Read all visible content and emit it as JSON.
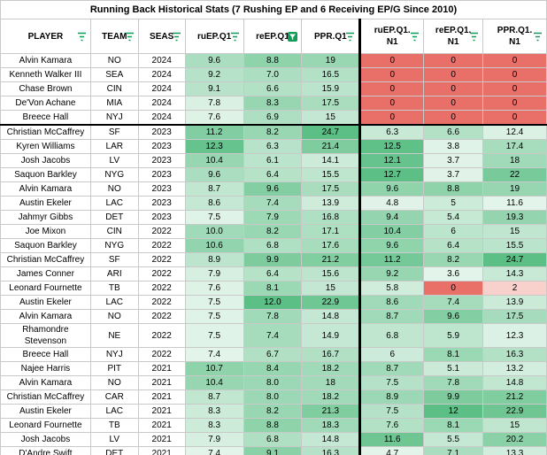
{
  "title": "Running Back Historical Stats (7 Rushing EP and 6 Receiving EP/G Since 2010)",
  "headers": [
    "PLAYER",
    "TEAM",
    "SEAS",
    "ruEP.Q1",
    "reEP.Q1",
    "PPR.Q1",
    "ruEP.Q1. N1",
    "reEP.Q1. N1",
    "PPR.Q1. N1"
  ],
  "colors": {
    "green_dark": "#5cbf85",
    "red": "#e87069",
    "green_light": "#e3f4ea",
    "filter_green": "#0f9d58"
  },
  "rows": [
    {
      "player": "Alvin Kamara",
      "team": "NO",
      "seas": "2024",
      "v": [
        "9.6",
        "8.8",
        "19",
        "0",
        "0",
        "0"
      ]
    },
    {
      "player": "Kenneth Walker III",
      "team": "SEA",
      "seas": "2024",
      "v": [
        "9.2",
        "7.0",
        "16.5",
        "0",
        "0",
        "0"
      ]
    },
    {
      "player": "Chase Brown",
      "team": "CIN",
      "seas": "2024",
      "v": [
        "9.1",
        "6.6",
        "15.9",
        "0",
        "0",
        "0"
      ]
    },
    {
      "player": "De'Von Achane",
      "team": "MIA",
      "seas": "2024",
      "v": [
        "7.8",
        "8.3",
        "17.5",
        "0",
        "0",
        "0"
      ]
    },
    {
      "player": "Breece Hall",
      "team": "NYJ",
      "seas": "2024",
      "v": [
        "7.6",
        "6.9",
        "15",
        "0",
        "0",
        "0"
      ]
    },
    {
      "player": "Christian McCaffrey",
      "team": "SF",
      "seas": "2023",
      "v": [
        "11.2",
        "8.2",
        "24.7",
        "6.3",
        "6.6",
        "12.4"
      ]
    },
    {
      "player": "Kyren Williams",
      "team": "LAR",
      "seas": "2023",
      "v": [
        "12.3",
        "6.3",
        "21.4",
        "12.5",
        "3.8",
        "17.4"
      ]
    },
    {
      "player": "Josh Jacobs",
      "team": "LV",
      "seas": "2023",
      "v": [
        "10.4",
        "6.1",
        "14.1",
        "12.1",
        "3.7",
        "18"
      ]
    },
    {
      "player": "Saquon Barkley",
      "team": "NYG",
      "seas": "2023",
      "v": [
        "9.6",
        "6.4",
        "15.5",
        "12.7",
        "3.7",
        "22"
      ]
    },
    {
      "player": "Alvin Kamara",
      "team": "NO",
      "seas": "2023",
      "v": [
        "8.7",
        "9.6",
        "17.5",
        "9.6",
        "8.8",
        "19"
      ]
    },
    {
      "player": "Austin Ekeler",
      "team": "LAC",
      "seas": "2023",
      "v": [
        "8.6",
        "7.4",
        "13.9",
        "4.8",
        "5",
        "11.6"
      ]
    },
    {
      "player": "Jahmyr Gibbs",
      "team": "DET",
      "seas": "2023",
      "v": [
        "7.5",
        "7.9",
        "16.8",
        "9.4",
        "5.4",
        "19.3"
      ]
    },
    {
      "player": "Joe Mixon",
      "team": "CIN",
      "seas": "2022",
      "v": [
        "10.0",
        "8.2",
        "17.1",
        "10.4",
        "6",
        "15"
      ]
    },
    {
      "player": "Saquon Barkley",
      "team": "NYG",
      "seas": "2022",
      "v": [
        "10.6",
        "6.8",
        "17.6",
        "9.6",
        "6.4",
        "15.5"
      ]
    },
    {
      "player": "Christian McCaffrey",
      "team": "SF",
      "seas": "2022",
      "v": [
        "8.9",
        "9.9",
        "21.2",
        "11.2",
        "8.2",
        "24.7"
      ]
    },
    {
      "player": "James Conner",
      "team": "ARI",
      "seas": "2022",
      "v": [
        "7.9",
        "6.4",
        "15.6",
        "9.2",
        "3.6",
        "14.3"
      ]
    },
    {
      "player": "Leonard Fournette",
      "team": "TB",
      "seas": "2022",
      "v": [
        "7.6",
        "8.1",
        "15",
        "5.8",
        "0",
        "2"
      ]
    },
    {
      "player": "Austin Ekeler",
      "team": "LAC",
      "seas": "2022",
      "v": [
        "7.5",
        "12.0",
        "22.9",
        "8.6",
        "7.4",
        "13.9"
      ]
    },
    {
      "player": "Alvin Kamara",
      "team": "NO",
      "seas": "2022",
      "v": [
        "7.5",
        "7.8",
        "14.8",
        "8.7",
        "9.6",
        "17.5"
      ]
    },
    {
      "player": "Rhamondre Stevenson",
      "team": "NE",
      "seas": "2022",
      "v": [
        "7.5",
        "7.4",
        "14.9",
        "6.8",
        "5.9",
        "12.3"
      ]
    },
    {
      "player": "Breece Hall",
      "team": "NYJ",
      "seas": "2022",
      "v": [
        "7.4",
        "6.7",
        "16.7",
        "6",
        "8.1",
        "16.3"
      ]
    },
    {
      "player": "Najee Harris",
      "team": "PIT",
      "seas": "2021",
      "v": [
        "10.7",
        "8.4",
        "18.2",
        "8.7",
        "5.1",
        "13.2"
      ]
    },
    {
      "player": "Alvin Kamara",
      "team": "NO",
      "seas": "2021",
      "v": [
        "10.4",
        "8.0",
        "18",
        "7.5",
        "7.8",
        "14.8"
      ]
    },
    {
      "player": "Christian McCaffrey",
      "team": "CAR",
      "seas": "2021",
      "v": [
        "8.7",
        "8.0",
        "18.2",
        "8.9",
        "9.9",
        "21.2"
      ]
    },
    {
      "player": "Austin Ekeler",
      "team": "LAC",
      "seas": "2021",
      "v": [
        "8.3",
        "8.2",
        "21.3",
        "7.5",
        "12",
        "22.9"
      ]
    },
    {
      "player": "Leonard Fournette",
      "team": "TB",
      "seas": "2021",
      "v": [
        "8.3",
        "8.8",
        "18.3",
        "7.6",
        "8.1",
        "15"
      ]
    },
    {
      "player": "Josh Jacobs",
      "team": "LV",
      "seas": "2021",
      "v": [
        "7.9",
        "6.8",
        "14.8",
        "11.6",
        "5.5",
        "20.2"
      ]
    },
    {
      "player": "D'Andre Swift",
      "team": "DET",
      "seas": "2021",
      "v": [
        "7.4",
        "9.1",
        "16.3",
        "4.7",
        "7.1",
        "13.3"
      ]
    }
  ]
}
